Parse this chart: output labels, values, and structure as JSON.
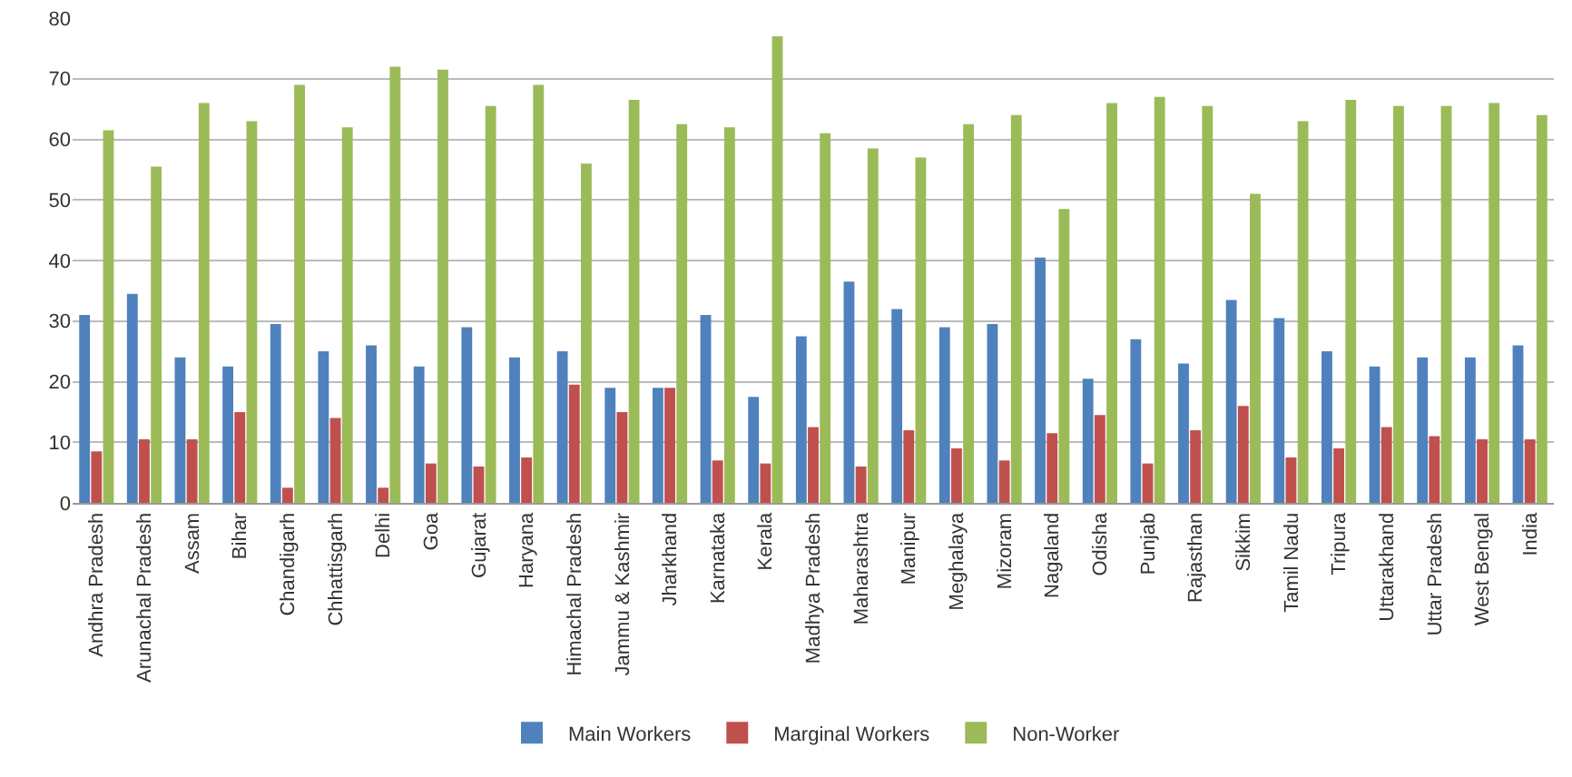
{
  "chart_data": {
    "type": "bar",
    "categories": [
      "Andhra Pradesh",
      "Arunachal Pradesh",
      "Assam",
      "Bihar",
      "Chandigarh",
      "Chhattisgarh",
      "Delhi",
      "Goa",
      "Gujarat",
      "Haryana",
      "Himachal Pradesh",
      "Jammu & Kashmir",
      "Jharkhand",
      "Karnataka",
      "Kerala",
      "Madhya Pradesh",
      "Maharashtra",
      "Manipur",
      "Meghalaya",
      "Mizoram",
      "Nagaland",
      "Odisha",
      "Punjab",
      "Rajasthan",
      "Sikkim",
      "Tamil Nadu",
      "Tripura",
      "Uttarakhand",
      "Uttar Pradesh",
      "West Bengal",
      "India"
    ],
    "series": [
      {
        "name": "Main Workers",
        "color": "#4f81bd",
        "values": [
          31,
          34.5,
          24,
          22.5,
          29.5,
          25,
          26,
          22.5,
          29,
          24,
          25,
          19,
          19,
          31,
          17.5,
          27.5,
          36.5,
          32,
          29,
          29.5,
          40.5,
          20.5,
          27,
          23,
          33.5,
          30.5,
          25,
          22.5,
          24,
          24,
          26
        ]
      },
      {
        "name": "Marginal Workers",
        "color": "#c0504d",
        "values": [
          8.5,
          10.5,
          10.5,
          15,
          2.5,
          14,
          2.5,
          6.5,
          6,
          7.5,
          19.5,
          15,
          19,
          7,
          6.5,
          12.5,
          6,
          12,
          9,
          7,
          11.5,
          14.5,
          6.5,
          12,
          16,
          7.5,
          9,
          12.5,
          11,
          10.5,
          10.5
        ]
      },
      {
        "name": "Non-Worker",
        "color": "#9bbb59",
        "values": [
          61.5,
          55.5,
          66,
          63,
          69,
          62,
          72,
          71.5,
          65.5,
          69,
          56,
          66.5,
          62.5,
          62,
          77,
          61,
          58.5,
          57,
          62.5,
          64,
          48.5,
          66,
          67,
          65.5,
          51,
          63,
          66.5,
          65.5,
          65.5,
          66,
          64
        ]
      }
    ],
    "ylim": [
      0,
      80
    ],
    "yticks": [
      0,
      10,
      20,
      30,
      40,
      50,
      60,
      70,
      80
    ],
    "grid": "y",
    "legend": "bottom"
  }
}
